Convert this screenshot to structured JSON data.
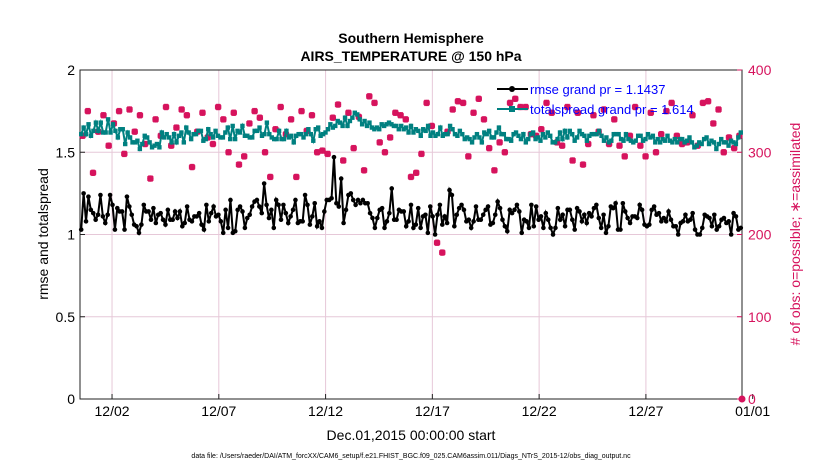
{
  "chart_data": {
    "type": "line",
    "title": "Southern Hemisphere",
    "subtitle": "AIRS_TEMPERATURE @ 150 hPa",
    "xlabel": "Dec.01,2015 00:00:00 start",
    "ylabel": "rmse and totalspread",
    "y2label": "# of obs: o=possible; ∗=assimilated",
    "footer": "data file: /Users/raeder/DAI/ATM_forcXX/CAM6_setup/f.e21.FHIST_BGC.f09_025.CAM6assim.011/Diags_NTrS_2015-12/obs_diag_output.nc",
    "xlim": [
      0.5,
      31.5
    ],
    "ylim": [
      0,
      2
    ],
    "y2lim": [
      0,
      400
    ],
    "xticks": [
      {
        "value": 2,
        "label": "12/02"
      },
      {
        "value": 7,
        "label": "12/07"
      },
      {
        "value": 12,
        "label": "12/12"
      },
      {
        "value": 17,
        "label": "12/17"
      },
      {
        "value": 22,
        "label": "12/22"
      },
      {
        "value": 27,
        "label": "12/27"
      },
      {
        "value": 32,
        "label": "01/01"
      }
    ],
    "yticks": [
      "0",
      "0.5",
      "1",
      "1.5",
      "2"
    ],
    "y2ticks": [
      "0",
      "100",
      "200",
      "300",
      "400"
    ],
    "grid": true,
    "legend_position": "top-right",
    "legend": [
      {
        "label": "rmse grand pr = 1.1437",
        "series": "rmse"
      },
      {
        "label": "totalspread grand pr = 1.614",
        "series": "totalspread"
      }
    ],
    "colors": {
      "rmse": "#000000",
      "totalspread": "#008080",
      "obs": "#d6135d",
      "legend_text": "#0000ff",
      "grid": "#e6c8d8"
    },
    "series": [
      {
        "name": "rmse",
        "axis": "left",
        "values": [
          1.03,
          1.25,
          1.08,
          1.23,
          1.15,
          1.13,
          1.09,
          1.12,
          1.24,
          1.11,
          1.07,
          1.12,
          1.24,
          1.18,
          1.03,
          1.16,
          1.14,
          1.14,
          1.03,
          1.23,
          1.17,
          1.12,
          1.06,
          1.05,
          1.01,
          1.06,
          1.18,
          1.14,
          1.14,
          1.09,
          1.16,
          1.07,
          1.12,
          1.13,
          1.09,
          1.06,
          1.15,
          1.09,
          1.09,
          1.14,
          1.1,
          1.14,
          1.05,
          1.07,
          1.17,
          1.09,
          1.08,
          1.11,
          1.11,
          1.13,
          1.06,
          1.03,
          1.18,
          1.08,
          1.13,
          1.17,
          1.11,
          1.12,
          1.08,
          1.01,
          1.15,
          1.04,
          1.21,
          1.01,
          1.02,
          1.15,
          1.17,
          1.14,
          1.04,
          1.1,
          1.12,
          1.17,
          1.2,
          1.21,
          1.17,
          1.13,
          1.31,
          1.18,
          1.1,
          1.15,
          1.04,
          1.21,
          1.18,
          1.09,
          1.18,
          1.13,
          1.07,
          1.11,
          1.15,
          1.21,
          1.07,
          1.08,
          1.08,
          1.24,
          1.18,
          1.06,
          1.11,
          1.19,
          1.05,
          1.08,
          1.04,
          1.14,
          1.21,
          1.21,
          1.22,
          1.47,
          1.19,
          1.17,
          1.34,
          1.07,
          1.15,
          1.24,
          1.25,
          1.21,
          1.18,
          1.21,
          1.19,
          1.21,
          1.19,
          1.19,
          1.13,
          1.1,
          1.04,
          1.1,
          1.15,
          1.16,
          1.04,
          1.08,
          1.13,
          1.28,
          1.09,
          1.09,
          1.15,
          1.14,
          1.14,
          1.05,
          1.08,
          1.18,
          1.04,
          1.06,
          1.16,
          1.04,
          1.11,
          1.12,
          1.01,
          1.17,
          1.11,
          1.0,
          1.12,
          1.18,
          1.06,
          1.11,
          1.07,
          1.27,
          1.24,
          1.05,
          1.12,
          1.16,
          1.18,
          1.15,
          1.08,
          1.09,
          1.04,
          1.08,
          1.17,
          1.09,
          1.09,
          1.12,
          1.15,
          1.17,
          1.06,
          1.07,
          1.12,
          1.2,
          1.16,
          1.09,
          1.05,
          1.02,
          1.15,
          1.13,
          1.15,
          1.18,
          1.14,
          1.01,
          1.09,
          1.08,
          1.04,
          1.18,
          1.05,
          1.17,
          1.09,
          1.11,
          1.04,
          1.13,
          1.09,
          1.04,
          1.0,
          1.04,
          1.16,
          1.09,
          1.12,
          1.05,
          1.15,
          1.15,
          1.09,
          1.03,
          1.16,
          1.14,
          1.08,
          1.12,
          1.07,
          1.13,
          1.11,
          1.16,
          1.18,
          1.1,
          1.04,
          1.12,
          1.01,
          1.05,
          1.17,
          1.16,
          1.19,
          1.03,
          1.03,
          1.19,
          1.14,
          1.1,
          1.07,
          1.11,
          1.11,
          1.1,
          1.18,
          1.15,
          1.06,
          1.05,
          1.06,
          1.15,
          1.17,
          1.12,
          1.13,
          1.08,
          1.1,
          1.08,
          1.14,
          1.09,
          1.05,
          1.05,
          1.0,
          1.07,
          1.08,
          1.12,
          1.08,
          1.09,
          1.13,
          1.03,
          1.0,
          1.0,
          1.04,
          1.12,
          1.11,
          1.1,
          1.05,
          1.12,
          1.03,
          1.05,
          1.09,
          1.1,
          1.07,
          1.08,
          1.0,
          1.13,
          1.11,
          1.03,
          1.04
        ]
      },
      {
        "name": "totalspread",
        "axis": "left",
        "values": [
          1.61,
          1.65,
          1.61,
          1.67,
          1.6,
          1.63,
          1.68,
          1.63,
          1.68,
          1.62,
          1.62,
          1.7,
          1.62,
          1.67,
          1.63,
          1.59,
          1.64,
          1.64,
          1.55,
          1.62,
          1.59,
          1.56,
          1.56,
          1.57,
          1.52,
          1.55,
          1.6,
          1.59,
          1.56,
          1.53,
          1.54,
          1.55,
          1.53,
          1.62,
          1.59,
          1.61,
          1.59,
          1.56,
          1.61,
          1.56,
          1.6,
          1.62,
          1.56,
          1.65,
          1.62,
          1.58,
          1.61,
          1.61,
          1.63,
          1.63,
          1.57,
          1.58,
          1.64,
          1.61,
          1.59,
          1.63,
          1.6,
          1.59,
          1.59,
          1.62,
          1.65,
          1.58,
          1.66,
          1.58,
          1.63,
          1.62,
          1.66,
          1.6,
          1.6,
          1.59,
          1.59,
          1.63,
          1.63,
          1.65,
          1.6,
          1.61,
          1.68,
          1.61,
          1.59,
          1.58,
          1.58,
          1.63,
          1.58,
          1.58,
          1.63,
          1.59,
          1.6,
          1.56,
          1.6,
          1.61,
          1.61,
          1.59,
          1.61,
          1.64,
          1.61,
          1.57,
          1.64,
          1.65,
          1.6,
          1.61,
          1.62,
          1.64,
          1.67,
          1.65,
          1.66,
          1.69,
          1.68,
          1.66,
          1.71,
          1.66,
          1.69,
          1.71,
          1.74,
          1.73,
          1.7,
          1.67,
          1.69,
          1.66,
          1.68,
          1.65,
          1.64,
          1.65,
          1.64,
          1.67,
          1.66,
          1.67,
          1.68,
          1.67,
          1.66,
          1.66,
          1.64,
          1.66,
          1.64,
          1.65,
          1.62,
          1.66,
          1.62,
          1.64,
          1.63,
          1.6,
          1.64,
          1.63,
          1.66,
          1.6,
          1.62,
          1.6,
          1.61,
          1.65,
          1.6,
          1.61,
          1.61,
          1.66,
          1.64,
          1.61,
          1.6,
          1.63,
          1.61,
          1.58,
          1.59,
          1.58,
          1.56,
          1.59,
          1.61,
          1.59,
          1.56,
          1.62,
          1.61,
          1.63,
          1.59,
          1.59,
          1.62,
          1.65,
          1.61,
          1.61,
          1.58,
          1.58,
          1.57,
          1.61,
          1.62,
          1.6,
          1.58,
          1.61,
          1.56,
          1.58,
          1.61,
          1.62,
          1.58,
          1.59,
          1.57,
          1.61,
          1.59,
          1.62,
          1.6,
          1.56,
          1.56,
          1.58,
          1.62,
          1.58,
          1.63,
          1.59,
          1.63,
          1.61,
          1.57,
          1.59,
          1.63,
          1.61,
          1.6,
          1.57,
          1.6,
          1.61,
          1.61,
          1.61,
          1.63,
          1.6,
          1.57,
          1.59,
          1.56,
          1.57,
          1.61,
          1.61,
          1.61,
          1.58,
          1.57,
          1.61,
          1.58,
          1.57,
          1.56,
          1.57,
          1.6,
          1.6,
          1.57,
          1.58,
          1.61,
          1.59,
          1.6,
          1.56,
          1.58,
          1.56,
          1.58,
          1.57,
          1.6,
          1.57,
          1.56,
          1.58,
          1.56,
          1.58,
          1.58,
          1.56,
          1.57,
          1.59,
          1.56,
          1.53,
          1.54,
          1.56,
          1.55,
          1.58,
          1.59,
          1.55,
          1.57,
          1.56,
          1.52,
          1.55,
          1.58,
          1.56,
          1.56,
          1.54,
          1.57,
          1.56,
          1.55,
          1.59,
          1.62
        ]
      },
      {
        "name": "obs",
        "axis": "right",
        "marker": "asterisk",
        "values": [
          320,
          350,
          275,
          325,
          345,
          308,
          335,
          350,
          298,
          352,
          325,
          345,
          310,
          268,
          340,
          320,
          355,
          308,
          330,
          352,
          345,
          282,
          325,
          348,
          318,
          310,
          355,
          340,
          300,
          348,
          285,
          295,
          335,
          350,
          342,
          300,
          270,
          328,
          355,
          322,
          340,
          270,
          350,
          326,
          345,
          300,
          302,
          298,
          342,
          358,
          290,
          348,
          305,
          343,
          278,
          368,
          360,
          312,
          300,
          318,
          348,
          345,
          340,
          270,
          275,
          298,
          360,
          332,
          190,
          178,
          325,
          352,
          362,
          360,
          295,
          348,
          365,
          340,
          305,
          278,
          312,
          300,
          360,
          365,
          355,
          355,
          322,
          320,
          328,
          360,
          348,
          312,
          308,
          355,
          290,
          348,
          285,
          310,
          345,
          325,
          352,
          310,
          340,
          308,
          295,
          320,
          355,
          308,
          295,
          348,
          300,
          322,
          350,
          360,
          320,
          310,
          312,
          345,
          308,
          360,
          362,
          335,
          352,
          300,
          318,
          305,
          320
        ]
      }
    ]
  }
}
